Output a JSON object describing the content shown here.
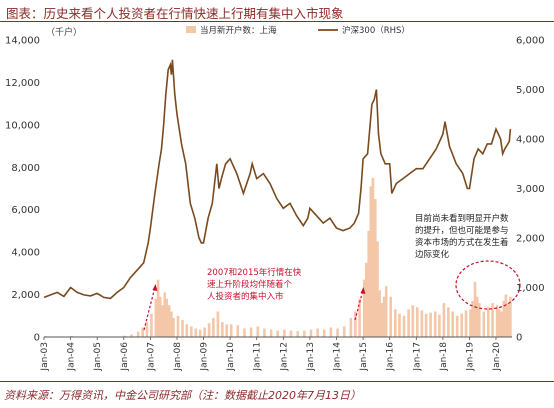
{
  "header": {
    "title": "图表：历史来看个人投资者在行情快速上行期有集中入市现象"
  },
  "footer": {
    "source": "资料来源：万得资讯，中金公司研究部（注：数据截止2020年7月13日）"
  },
  "chart_data": {
    "type": "bar+line",
    "unit_left": "（千户）",
    "x_tick_labels": [
      "Jan-03",
      "Jan-04",
      "Jan-05",
      "Jan-06",
      "Jan-07",
      "Jan-08",
      "Jan-09",
      "Jan-10",
      "Jan-11",
      "Jan-12",
      "Jan-13",
      "Jan-14",
      "Jan-15",
      "Jan-16",
      "Jan-17",
      "Jan-18",
      "Jan-19",
      "Jan-20"
    ],
    "y_left": {
      "ticks": [
        0,
        2000,
        4000,
        6000,
        8000,
        10000,
        12000,
        14000
      ],
      "tick_labels": [
        "0",
        "2,000",
        "4,000",
        "6,000",
        "8,000",
        "10,000",
        "12,000",
        "14,000"
      ],
      "ylim": [
        0,
        14000
      ]
    },
    "y_right": {
      "ticks": [
        0,
        1000,
        2000,
        3000,
        4000,
        5000,
        6000
      ],
      "tick_labels": [
        "0",
        "1,000",
        "2,000",
        "3,000",
        "4,000",
        "5,000",
        "6,000"
      ],
      "ylim": [
        0,
        6000
      ]
    },
    "legend_position": "top",
    "series": [
      {
        "name": "当月新开户数：上海",
        "axis": "left",
        "kind": "bar",
        "color": "#F4C7A8",
        "x": [
          2003.04,
          2003.54,
          2004.04,
          2004.54,
          2005.04,
          2005.54,
          2006.04,
          2006.29,
          2006.54,
          2006.71,
          2006.87,
          2007.04,
          2007.21,
          2007.29,
          2007.37,
          2007.46,
          2007.54,
          2007.62,
          2007.71,
          2007.79,
          2007.87,
          2008.04,
          2008.21,
          2008.37,
          2008.54,
          2008.71,
          2008.87,
          2009.04,
          2009.21,
          2009.37,
          2009.54,
          2009.71,
          2009.87,
          2010.04,
          2010.29,
          2010.54,
          2010.79,
          2011.04,
          2011.29,
          2011.54,
          2011.79,
          2012.04,
          2012.29,
          2012.54,
          2012.79,
          2013.04,
          2013.29,
          2013.54,
          2013.79,
          2014.04,
          2014.29,
          2014.54,
          2014.71,
          2014.87,
          2015.04,
          2015.12,
          2015.21,
          2015.29,
          2015.37,
          2015.46,
          2015.54,
          2015.62,
          2015.71,
          2015.79,
          2015.87,
          2016.04,
          2016.21,
          2016.37,
          2016.54,
          2016.71,
          2016.87,
          2017.04,
          2017.21,
          2017.37,
          2017.54,
          2017.71,
          2017.87,
          2018.04,
          2018.21,
          2018.37,
          2018.54,
          2018.71,
          2018.87,
          2019.04,
          2019.12,
          2019.21,
          2019.29,
          2019.37,
          2019.54,
          2019.71,
          2019.87,
          2020.04,
          2020.12,
          2020.21,
          2020.29,
          2020.37,
          2020.46,
          2020.54
        ],
        "values": [
          40,
          30,
          45,
          30,
          25,
          20,
          60,
          120,
          250,
          450,
          700,
          1100,
          1800,
          2700,
          1900,
          1500,
          2100,
          1800,
          1500,
          1200,
          900,
          1000,
          800,
          600,
          500,
          400,
          350,
          450,
          650,
          900,
          1200,
          700,
          600,
          600,
          550,
          400,
          450,
          500,
          400,
          350,
          300,
          350,
          300,
          280,
          300,
          350,
          400,
          350,
          450,
          400,
          500,
          900,
          1200,
          1800,
          2700,
          3500,
          5000,
          7100,
          7500,
          6500,
          4500,
          2200,
          1600,
          1900,
          2400,
          1900,
          1300,
          1100,
          1000,
          1300,
          1500,
          1400,
          1250,
          1100,
          1150,
          1200,
          1050,
          1600,
          1400,
          1200,
          1000,
          1100,
          1250,
          1300,
          1700,
          2600,
          1900,
          1600,
          1200,
          1400,
          1600,
          1500,
          1300,
          1200,
          1700,
          2000,
          1600,
          1900
        ]
      },
      {
        "name": "沪深300（RHS）",
        "axis": "right",
        "kind": "line",
        "color": "#7A4A1E",
        "x": [
          2003.0,
          2003.25,
          2003.5,
          2003.75,
          2004.0,
          2004.25,
          2004.5,
          2004.75,
          2005.0,
          2005.25,
          2005.5,
          2005.75,
          2006.0,
          2006.25,
          2006.5,
          2006.75,
          2006.92,
          2007.0,
          2007.17,
          2007.33,
          2007.42,
          2007.5,
          2007.58,
          2007.67,
          2007.75,
          2007.79,
          2007.83,
          2007.92,
          2008.0,
          2008.17,
          2008.33,
          2008.5,
          2008.67,
          2008.83,
          2008.92,
          2009.0,
          2009.17,
          2009.33,
          2009.5,
          2009.58,
          2009.67,
          2009.83,
          2010.0,
          2010.25,
          2010.5,
          2010.75,
          2010.83,
          2011.0,
          2011.25,
          2011.5,
          2011.75,
          2012.0,
          2012.25,
          2012.5,
          2012.75,
          2012.92,
          2013.0,
          2013.17,
          2013.42,
          2013.5,
          2013.75,
          2014.0,
          2014.25,
          2014.5,
          2014.67,
          2014.83,
          2014.92,
          2015.0,
          2015.17,
          2015.33,
          2015.42,
          2015.5,
          2015.58,
          2015.67,
          2015.83,
          2016.0,
          2016.08,
          2016.25,
          2016.5,
          2016.75,
          2017.0,
          2017.25,
          2017.5,
          2017.75,
          2017.92,
          2018.0,
          2018.08,
          2018.25,
          2018.5,
          2018.75,
          2018.92,
          2019.0,
          2019.17,
          2019.33,
          2019.5,
          2019.67,
          2019.83,
          2020.0,
          2020.17,
          2020.25,
          2020.33,
          2020.5,
          2020.54
        ],
        "values": [
          800,
          850,
          900,
          820,
          1000,
          900,
          850,
          830,
          880,
          800,
          780,
          900,
          1000,
          1200,
          1350,
          1500,
          1900,
          2200,
          2900,
          3500,
          3800,
          4300,
          4900,
          5400,
          5500,
          5300,
          5600,
          4900,
          4500,
          3900,
          3500,
          2700,
          2400,
          2000,
          1900,
          1900,
          2400,
          2700,
          3500,
          3000,
          3200,
          3500,
          3600,
          3300,
          2900,
          3300,
          3500,
          3200,
          3300,
          3100,
          2800,
          2600,
          2700,
          2450,
          2250,
          2400,
          2600,
          2500,
          2350,
          2300,
          2400,
          2200,
          2150,
          2200,
          2300,
          2500,
          3000,
          3600,
          3700,
          4700,
          4800,
          5000,
          4100,
          3700,
          3500,
          3500,
          2900,
          3100,
          3200,
          3300,
          3400,
          3400,
          3600,
          3800,
          4000,
          4100,
          4350,
          3850,
          3500,
          3300,
          3000,
          3000,
          3600,
          3800,
          3700,
          3900,
          3900,
          4200,
          4000,
          3700,
          3800,
          3950,
          4200
        ]
      }
    ],
    "annotations": [
      {
        "lines": [
          "2007和2015年行情在快",
          "速上升阶段均伴随着个",
          "人投资者的集中入市"
        ],
        "color": "#C8102E"
      },
      {
        "lines": [
          "目前尚未看到明显开户数",
          "的提升，但也可能是参与",
          "资本市场的方式在发生着",
          "边际变化"
        ],
        "color": "#222222"
      }
    ]
  }
}
